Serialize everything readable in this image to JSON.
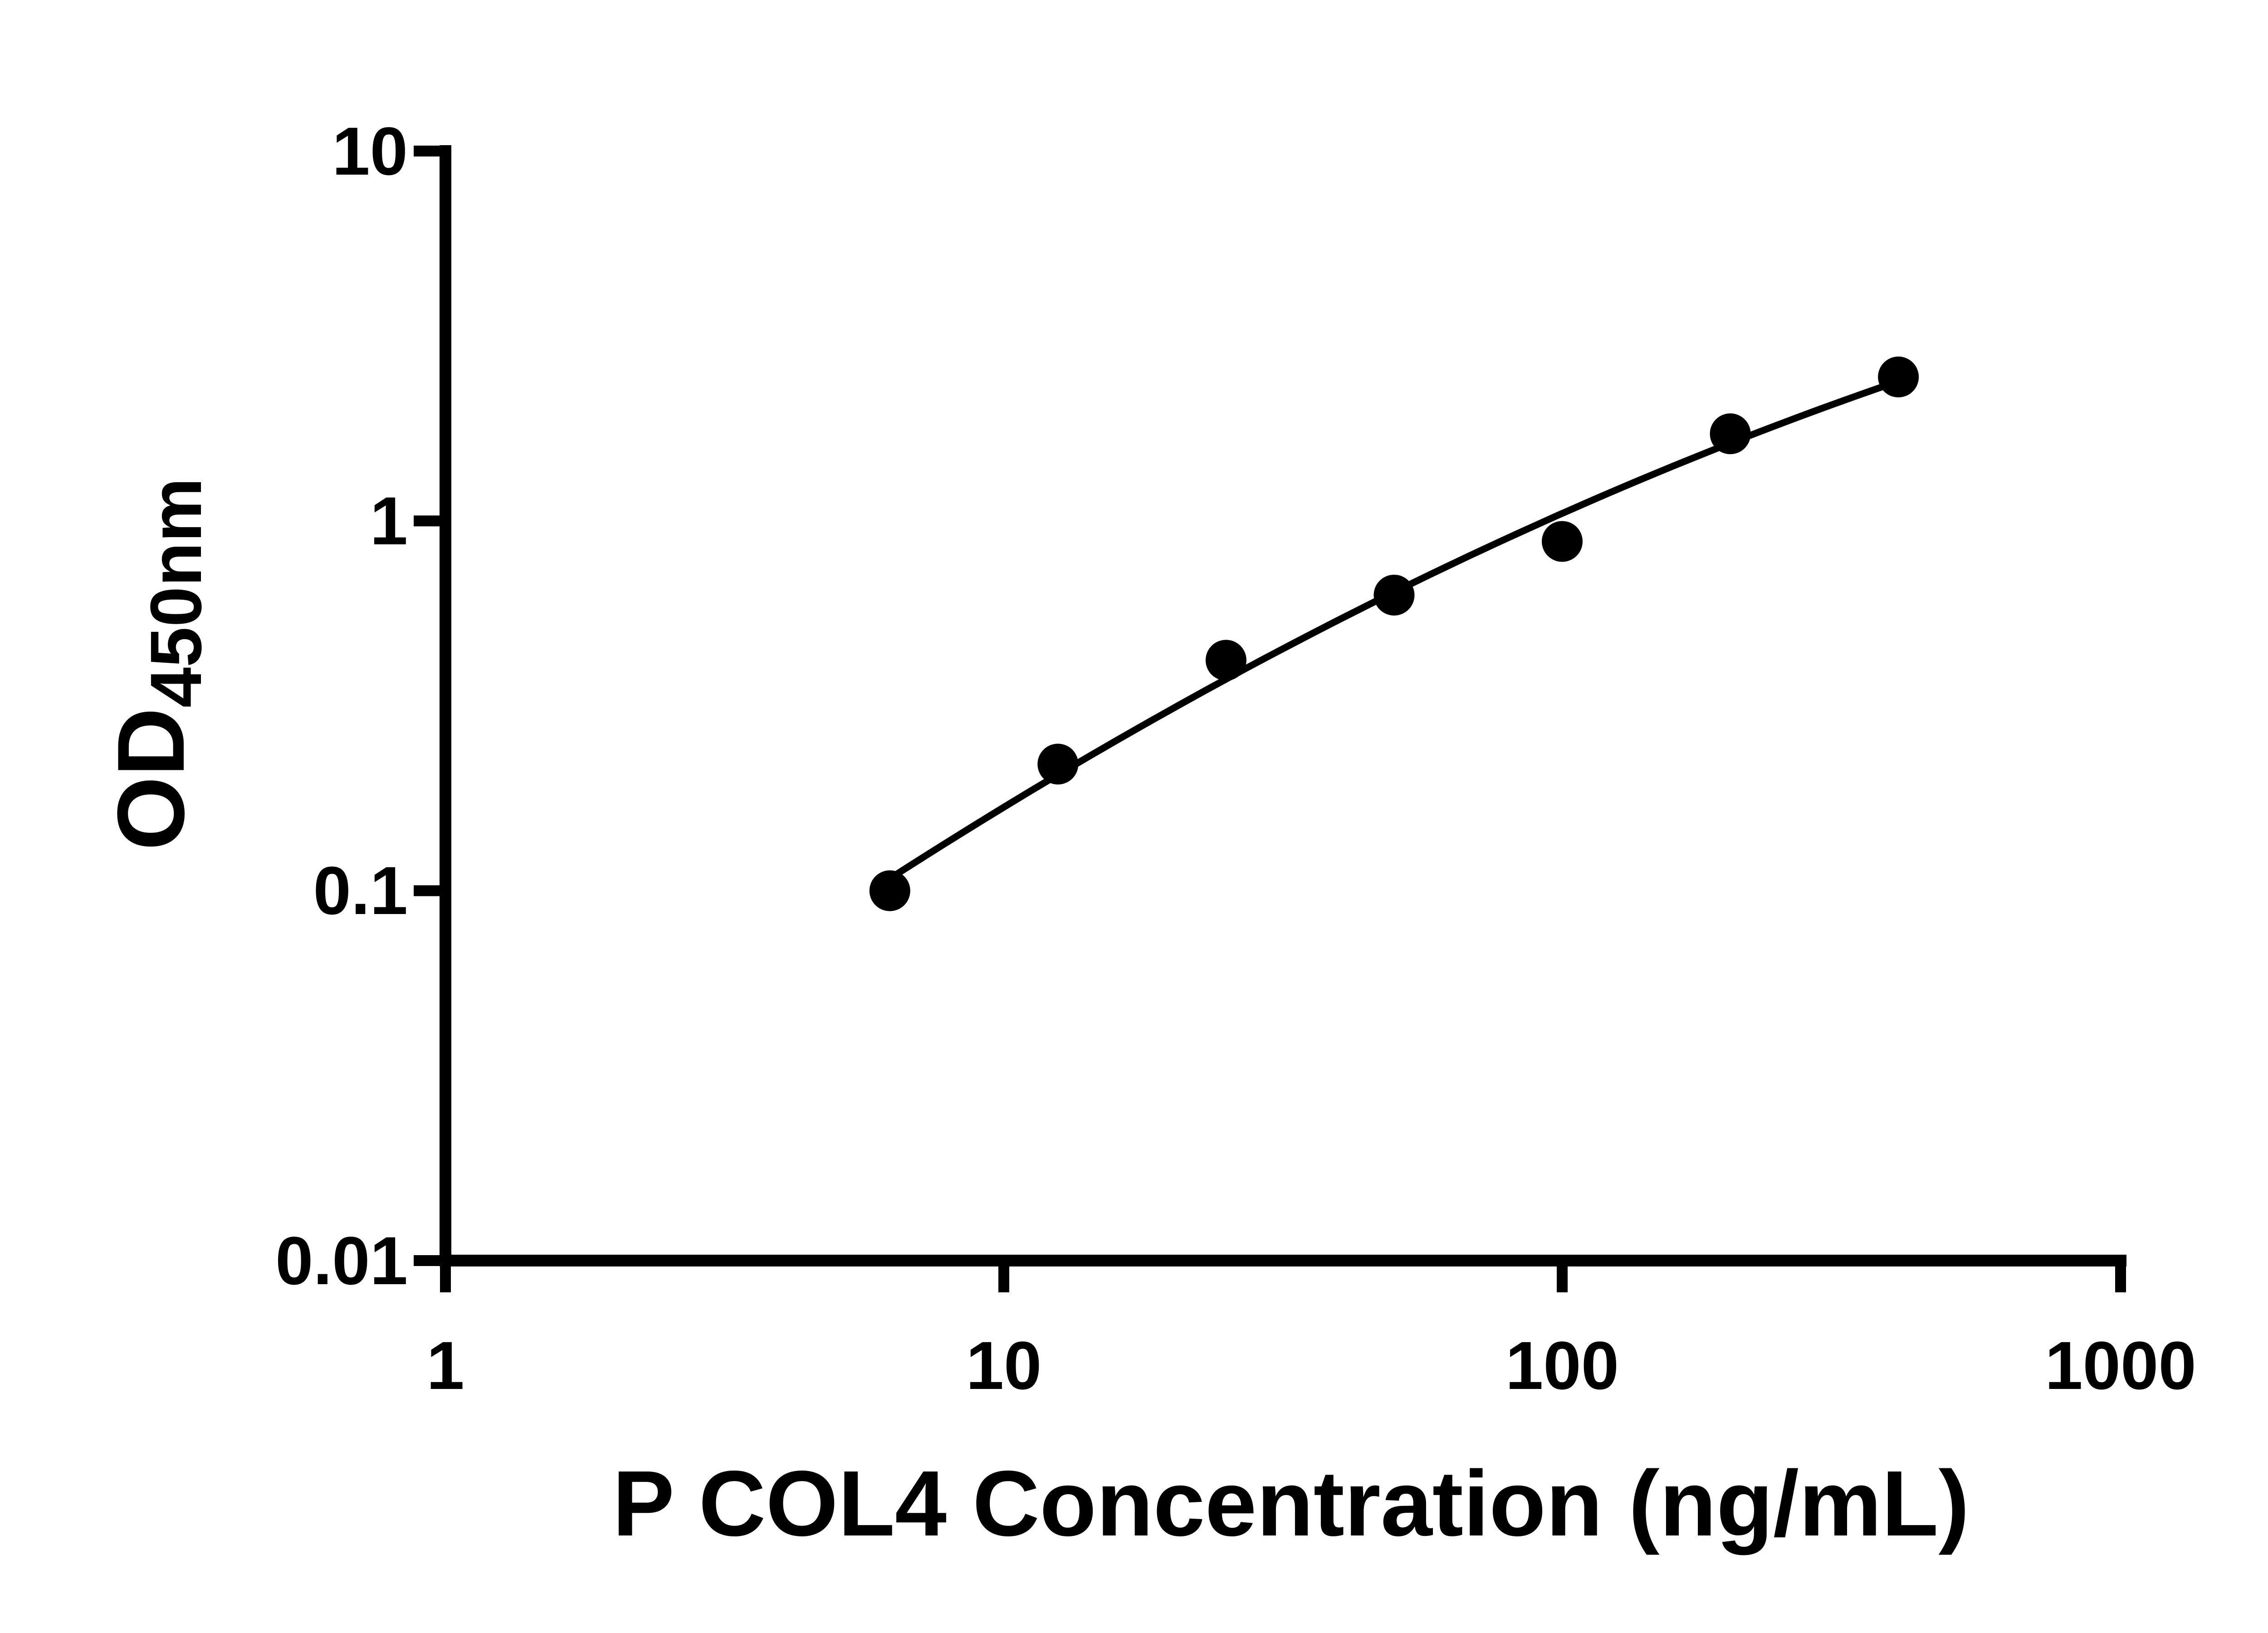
{
  "chart_data": {
    "type": "scatter",
    "title": "",
    "xlabel": "P COL4 Concentration (ng/mL)",
    "ylabel": "OD",
    "ylabel_subscript": "450nm",
    "xscale": "log",
    "yscale": "log",
    "xlim": [
      1,
      1000
    ],
    "ylim": [
      0.01,
      10
    ],
    "x_ticks": [
      "1",
      "10",
      "100",
      "1000"
    ],
    "x_tick_values": [
      1,
      10,
      100,
      1000
    ],
    "y_ticks": [
      "10",
      "1",
      "0.1",
      "0.01"
    ],
    "y_tick_values": [
      10,
      1,
      0.1,
      0.01
    ],
    "grid": false,
    "legend_position": "none",
    "axis_color": "#000000",
    "series": [
      {
        "x": [
          6.25,
          12.5,
          25,
          50,
          100,
          200,
          400
        ],
        "y": [
          0.1,
          0.22,
          0.42,
          0.63,
          0.88,
          1.72,
          2.45
        ],
        "marker": "circle",
        "marker_color": "#000000",
        "marker_radius": 45,
        "line_color": "#000000",
        "fit": "quadratic-loglog"
      }
    ]
  }
}
